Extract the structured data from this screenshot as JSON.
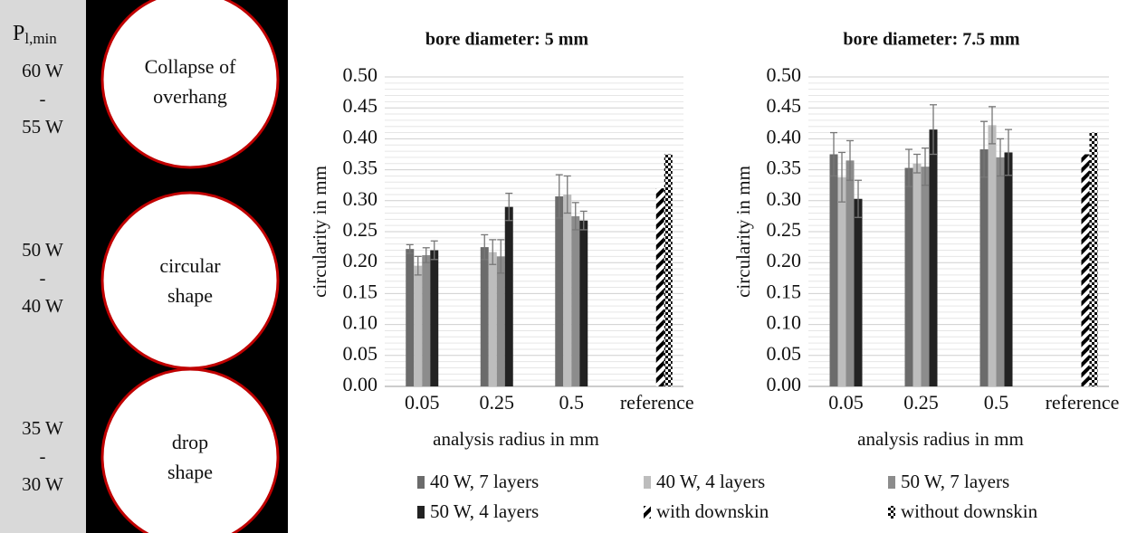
{
  "left_panel": {
    "header": "P",
    "header_sub": "l,min",
    "powers": [
      [
        "60 W",
        "-",
        "55 W"
      ],
      [
        "50 W",
        "-",
        "40 W"
      ],
      [
        "35 W",
        "-",
        "30 W"
      ]
    ],
    "shapes": [
      [
        "Collapse of",
        "overhang"
      ],
      [
        "circular",
        "shape"
      ],
      [
        "drop",
        "shape"
      ]
    ]
  },
  "chart_data": [
    {
      "type": "bar",
      "title": "bore diameter: 5 mm",
      "x_label": "analysis radius in mm",
      "y_label": "circularity in mm",
      "categories": [
        "0.05",
        "0.25",
        "0.5",
        "reference"
      ],
      "ylim": [
        0,
        0.5
      ],
      "yticks": [
        {
          "value": 0,
          "label": "0.00"
        },
        0.05,
        {
          "value": 0.1,
          "label": "0.10"
        },
        0.15,
        {
          "value": 0.2,
          "label": "0.20"
        },
        0.25,
        {
          "value": 0.3,
          "label": "0.30"
        },
        0.35,
        {
          "value": 0.4,
          "label": "0.40"
        },
        0.45,
        {
          "value": 0.5,
          "label": "0.50"
        }
      ],
      "grid": true,
      "minor_grid": true,
      "series": [
        {
          "name": "40 W, 7 layers",
          "color": "#6b6b6b",
          "values": [
            0.222,
            0.225,
            0.307,
            null
          ],
          "errors": [
            0.007,
            0.02,
            0.035,
            null
          ]
        },
        {
          "name": "40 W, 4 layers",
          "color": "#bdbdbd",
          "values": [
            0.195,
            0.217,
            0.31,
            null
          ],
          "errors": [
            0.015,
            0.02,
            0.03,
            null
          ]
        },
        {
          "name": "50 W, 7 layers",
          "color": "#8c8c8c",
          "values": [
            0.212,
            0.21,
            0.275,
            null
          ],
          "errors": [
            0.012,
            0.027,
            0.022,
            null
          ]
        },
        {
          "name": "50 W, 4 layers",
          "color": "#222222",
          "values": [
            0.22,
            0.29,
            0.268,
            null
          ],
          "errors": [
            0.015,
            0.022,
            0.015,
            null
          ]
        },
        {
          "name": "with downskin",
          "color": "url(#stripes)",
          "values": [
            null,
            null,
            null,
            0.32
          ]
        },
        {
          "name": "without downskin",
          "color": "url(#checks)",
          "values": [
            null,
            null,
            null,
            0.375
          ]
        }
      ]
    },
    {
      "type": "bar",
      "title": "bore diameter: 7.5 mm",
      "x_label": "analysis radius in mm",
      "y_label": "circularity in mm",
      "categories": [
        "0.05",
        "0.25",
        "0.5",
        "reference"
      ],
      "ylim": [
        0,
        0.5
      ],
      "yticks": [
        {
          "value": 0,
          "label": "0.00"
        },
        0.05,
        {
          "value": 0.1,
          "label": "0.10"
        },
        0.15,
        {
          "value": 0.2,
          "label": "0.20"
        },
        0.25,
        {
          "value": 0.3,
          "label": "0.30"
        },
        0.35,
        {
          "value": 0.4,
          "label": "0.40"
        },
        0.45,
        {
          "value": 0.5,
          "label": "0.50"
        }
      ],
      "grid": true,
      "minor_grid": true,
      "series": [
        {
          "name": "40 W, 7 layers",
          "color": "#6b6b6b",
          "values": [
            0.375,
            0.353,
            0.383,
            null
          ],
          "errors": [
            0.035,
            0.03,
            0.045,
            null
          ]
        },
        {
          "name": "40 W, 4 layers",
          "color": "#bdbdbd",
          "values": [
            0.338,
            0.36,
            0.422,
            null
          ],
          "errors": [
            0.04,
            0.015,
            0.03,
            null
          ]
        },
        {
          "name": "50 W, 7 layers",
          "color": "#8c8c8c",
          "values": [
            0.365,
            0.355,
            0.37,
            null
          ],
          "errors": [
            0.032,
            0.03,
            0.03,
            null
          ]
        },
        {
          "name": "50 W, 4 layers",
          "color": "#222222",
          "values": [
            0.303,
            0.415,
            0.378,
            null
          ],
          "errors": [
            0.03,
            0.04,
            0.037,
            null
          ]
        },
        {
          "name": "with downskin",
          "color": "url(#stripes)",
          "values": [
            null,
            null,
            null,
            0.375
          ]
        },
        {
          "name": "without downskin",
          "color": "url(#checks)",
          "values": [
            null,
            null,
            null,
            0.41
          ]
        }
      ]
    }
  ]
}
